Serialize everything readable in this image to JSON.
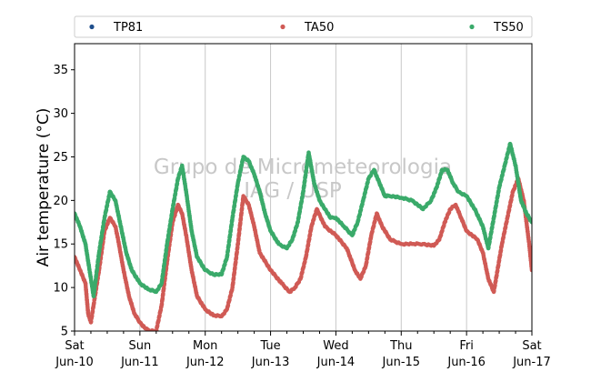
{
  "chart_data": {
    "type": "scatter",
    "ylabel": "Air temperature (°C)",
    "xlabel": "",
    "ylim": [
      5,
      38
    ],
    "xlim": [
      "2017-06-10 00:00",
      "2017-06-17 00:00"
    ],
    "yticks": [
      5,
      10,
      15,
      20,
      25,
      30,
      35
    ],
    "xticks": [
      {
        "day": "Sat",
        "date": "Jun-10"
      },
      {
        "day": "Sun",
        "date": "Jun-11"
      },
      {
        "day": "Mon",
        "date": "Jun-12"
      },
      {
        "day": "Tue",
        "date": "Jun-13"
      },
      {
        "day": "Wed",
        "date": "Jun-14"
      },
      {
        "day": "Thu",
        "date": "Jun-15"
      },
      {
        "day": "Fri",
        "date": "Jun-16"
      },
      {
        "day": "Sat",
        "date": "Jun-17"
      }
    ],
    "grid": "vertical at day ticks",
    "legend_position": "top, above plot, 3 columns",
    "watermark": [
      "Grupo de Micrometeorologia",
      "IAG / USP"
    ],
    "series": [
      {
        "name": "TP81",
        "color": "#1f4e8c",
        "x": [],
        "y": []
      },
      {
        "name": "TA50",
        "color": "#d05a55",
        "x": [
          "2017-06-10 00:00",
          "2017-06-10 02:00",
          "2017-06-10 04:00",
          "2017-06-10 05:00",
          "2017-06-10 06:00",
          "2017-06-10 07:00",
          "2017-06-10 09:00",
          "2017-06-10 11:00",
          "2017-06-10 13:00",
          "2017-06-10 15:00",
          "2017-06-10 16:00",
          "2017-06-10 18:00",
          "2017-06-10 20:00",
          "2017-06-10 22:00",
          "2017-06-11 00:00",
          "2017-06-11 02:00",
          "2017-06-11 04:00",
          "2017-06-11 06:00",
          "2017-06-11 08:00",
          "2017-06-11 10:00",
          "2017-06-11 12:00",
          "2017-06-11 14:00",
          "2017-06-11 15:30",
          "2017-06-11 17:00",
          "2017-06-11 19:00",
          "2017-06-11 21:00",
          "2017-06-12 00:00",
          "2017-06-12 03:00",
          "2017-06-12 06:00",
          "2017-06-12 08:00",
          "2017-06-12 10:00",
          "2017-06-12 12:00",
          "2017-06-12 14:00",
          "2017-06-12 16:00",
          "2017-06-12 18:00",
          "2017-06-12 20:00",
          "2017-06-13 00:00",
          "2017-06-13 04:00",
          "2017-06-13 07:00",
          "2017-06-13 09:00",
          "2017-06-13 11:00",
          "2017-06-13 13:00",
          "2017-06-13 15:00",
          "2017-06-13 17:00",
          "2017-06-13 20:00",
          "2017-06-14 00:00",
          "2017-06-14 04:00",
          "2017-06-14 07:00",
          "2017-06-14 09:00",
          "2017-06-14 11:00",
          "2017-06-14 13:00",
          "2017-06-14 15:00",
          "2017-06-14 17:00",
          "2017-06-14 20:00",
          "2017-06-15 00:00",
          "2017-06-15 04:00",
          "2017-06-15 08:00",
          "2017-06-15 12:00",
          "2017-06-15 14:00",
          "2017-06-15 16:00",
          "2017-06-15 18:00",
          "2017-06-15 20:00",
          "2017-06-15 22:00",
          "2017-06-16 00:00",
          "2017-06-16 04:00",
          "2017-06-16 06:00",
          "2017-06-16 08:00",
          "2017-06-16 10:00",
          "2017-06-16 13:00",
          "2017-06-16 15:00",
          "2017-06-16 17:00",
          "2017-06-16 19:00",
          "2017-06-16 21:00",
          "2017-06-16 23:00",
          "2017-06-17 00:00"
        ],
        "y": [
          13.5,
          12.0,
          10.5,
          7.0,
          6.0,
          8.0,
          12.0,
          16.5,
          18.0,
          17.0,
          15.5,
          12.0,
          9.0,
          7.0,
          6.0,
          5.3,
          5.0,
          5.0,
          8.0,
          13.0,
          17.5,
          19.5,
          18.5,
          16.0,
          12.0,
          9.0,
          7.5,
          6.8,
          6.7,
          7.5,
          10.0,
          15.0,
          20.5,
          19.5,
          17.0,
          14.0,
          12.0,
          10.5,
          9.5,
          10.0,
          11.0,
          13.5,
          17.0,
          19.0,
          17.0,
          16.0,
          14.5,
          12.0,
          11.0,
          12.5,
          16.0,
          18.5,
          17.0,
          15.5,
          15.0,
          15.0,
          15.0,
          14.8,
          15.5,
          17.5,
          19.0,
          19.5,
          18.0,
          16.5,
          15.5,
          14.0,
          11.0,
          9.5,
          15.0,
          18.0,
          21.0,
          22.5,
          20.0,
          15.0,
          12.0
        ]
      },
      {
        "name": "TS50",
        "color": "#3aaa6a",
        "x": [
          "2017-06-10 00:00",
          "2017-06-10 02:00",
          "2017-06-10 04:00",
          "2017-06-10 05:30",
          "2017-06-10 07:00",
          "2017-06-10 09:00",
          "2017-06-10 11:00",
          "2017-06-10 13:00",
          "2017-06-10 15:00",
          "2017-06-10 17:00",
          "2017-06-10 19:00",
          "2017-06-10 21:00",
          "2017-06-11 00:00",
          "2017-06-11 03:00",
          "2017-06-11 06:00",
          "2017-06-11 08:00",
          "2017-06-11 10:00",
          "2017-06-11 12:00",
          "2017-06-11 14:00",
          "2017-06-11 15:30",
          "2017-06-11 17:00",
          "2017-06-11 19:00",
          "2017-06-11 21:00",
          "2017-06-12 00:00",
          "2017-06-12 03:00",
          "2017-06-12 06:00",
          "2017-06-12 08:00",
          "2017-06-12 10:00",
          "2017-06-12 12:00",
          "2017-06-12 14:00",
          "2017-06-12 16:00",
          "2017-06-12 18:00",
          "2017-06-12 20:00",
          "2017-06-12 22:00",
          "2017-06-13 00:00",
          "2017-06-13 03:00",
          "2017-06-13 06:00",
          "2017-06-13 08:00",
          "2017-06-13 10:00",
          "2017-06-13 12:00",
          "2017-06-13 14:00",
          "2017-06-13 16:00",
          "2017-06-13 18:00",
          "2017-06-13 20:00",
          "2017-06-13 22:00",
          "2017-06-14 00:00",
          "2017-06-14 03:00",
          "2017-06-14 06:00",
          "2017-06-14 08:00",
          "2017-06-14 10:00",
          "2017-06-14 12:00",
          "2017-06-14 14:00",
          "2017-06-14 16:00",
          "2017-06-14 18:00",
          "2017-06-14 21:00",
          "2017-06-15 00:00",
          "2017-06-15 04:00",
          "2017-06-15 08:00",
          "2017-06-15 11:00",
          "2017-06-15 13:00",
          "2017-06-15 15:00",
          "2017-06-15 17:00",
          "2017-06-15 19:00",
          "2017-06-15 21:00",
          "2017-06-16 00:00",
          "2017-06-16 03:00",
          "2017-06-16 06:00",
          "2017-06-16 08:00",
          "2017-06-16 10:00",
          "2017-06-16 12:00",
          "2017-06-16 14:00",
          "2017-06-16 16:00",
          "2017-06-16 18:00",
          "2017-06-16 20:00",
          "2017-06-16 22:00",
          "2017-06-17 00:00"
        ],
        "y": [
          18.5,
          17.0,
          15.0,
          12.0,
          9.0,
          14.0,
          18.0,
          21.0,
          20.0,
          17.0,
          14.0,
          12.0,
          10.5,
          9.8,
          9.5,
          10.5,
          15.0,
          19.0,
          22.5,
          24.0,
          21.0,
          16.5,
          13.5,
          12.0,
          11.5,
          11.5,
          13.5,
          18.0,
          22.0,
          25.0,
          24.5,
          23.0,
          21.0,
          18.5,
          16.5,
          15.0,
          14.5,
          15.5,
          17.5,
          21.0,
          25.5,
          22.0,
          20.0,
          19.0,
          18.0,
          18.0,
          17.0,
          16.0,
          17.5,
          20.0,
          22.5,
          23.5,
          22.0,
          20.5,
          20.5,
          20.3,
          20.0,
          19.0,
          20.0,
          21.5,
          23.5,
          23.5,
          22.0,
          21.0,
          20.5,
          19.0,
          17.0,
          14.5,
          18.0,
          21.5,
          24.0,
          26.5,
          24.0,
          20.0,
          18.5,
          17.5
        ]
      }
    ]
  }
}
